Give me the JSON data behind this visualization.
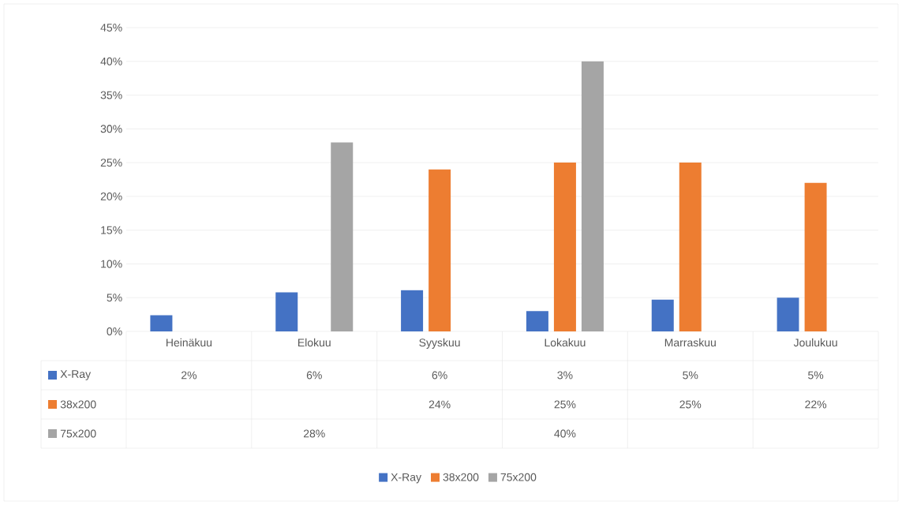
{
  "chart_data": {
    "type": "bar",
    "categories": [
      "Heinäkuu",
      "Elokuu",
      "Syyskuu",
      "Lokakuu",
      "Marraskuu",
      "Joulukuu"
    ],
    "series": [
      {
        "name": "X-Ray",
        "color": "#4472c4",
        "values": [
          2.4,
          5.8,
          6.1,
          3.0,
          4.7,
          5.0
        ],
        "value_labels": [
          "2%",
          "6%",
          "6%",
          "3%",
          "5%",
          "5%"
        ]
      },
      {
        "name": "38x200",
        "color": "#ed7d31",
        "values": [
          null,
          null,
          24,
          25,
          25,
          22
        ],
        "value_labels": [
          null,
          null,
          "24%",
          "25%",
          "25%",
          "22%"
        ]
      },
      {
        "name": "75x200",
        "color": "#a5a5a5",
        "values": [
          null,
          28,
          null,
          40,
          null,
          null
        ],
        "value_labels": [
          null,
          "28%",
          null,
          "40%",
          null,
          null
        ]
      }
    ],
    "ylim": [
      0,
      45
    ],
    "yticks": [
      {
        "value": 0,
        "label": "0%"
      },
      {
        "value": 5,
        "label": "5%"
      },
      {
        "value": 10,
        "label": "10%"
      },
      {
        "value": 15,
        "label": "15%"
      },
      {
        "value": 20,
        "label": "20%"
      },
      {
        "value": 25,
        "label": "25%"
      },
      {
        "value": 30,
        "label": "30%"
      },
      {
        "value": 35,
        "label": "35%"
      },
      {
        "value": 40,
        "label": "40%"
      },
      {
        "value": 45,
        "label": "45%"
      }
    ],
    "grid": "y",
    "legend": "bottom"
  }
}
